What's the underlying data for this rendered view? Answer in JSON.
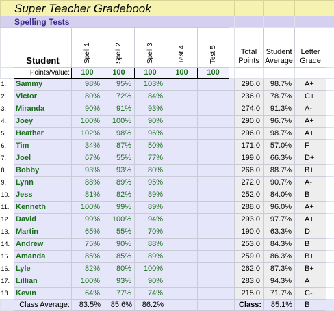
{
  "title": "Super Teacher Gradebook",
  "subtitle": "Spelling Tests",
  "student_header": "Student",
  "test_headers": [
    "Spell 1",
    "Spell 2",
    "Spell 3",
    "Test 4",
    "Test 5"
  ],
  "points_label": "Points/Value:",
  "points_values": [
    "100",
    "100",
    "100",
    "100",
    "100"
  ],
  "total_points_header": [
    "Total",
    "Points"
  ],
  "student_average_header": [
    "Student",
    "Average"
  ],
  "letter_grade_header": [
    "Letter",
    "Grade"
  ],
  "students": [
    {
      "num": "1.",
      "name": "Sammy",
      "s1": "98%",
      "s2": "95%",
      "s3": "103%",
      "total": "296.0",
      "avg": "98.7%",
      "grade": "A+"
    },
    {
      "num": "2.",
      "name": "Victor",
      "s1": "80%",
      "s2": "72%",
      "s3": "84%",
      "total": "236.0",
      "avg": "78.7%",
      "grade": "C+"
    },
    {
      "num": "3.",
      "name": "Miranda",
      "s1": "90%",
      "s2": "91%",
      "s3": "93%",
      "total": "274.0",
      "avg": "91.3%",
      "grade": "A-"
    },
    {
      "num": "4.",
      "name": "Joey",
      "s1": "100%",
      "s2": "100%",
      "s3": "90%",
      "total": "290.0",
      "avg": "96.7%",
      "grade": "A+"
    },
    {
      "num": "5.",
      "name": "Heather",
      "s1": "102%",
      "s2": "98%",
      "s3": "96%",
      "total": "296.0",
      "avg": "98.7%",
      "grade": "A+"
    },
    {
      "num": "6.",
      "name": "Tim",
      "s1": "34%",
      "s2": "87%",
      "s3": "50%",
      "total": "171.0",
      "avg": "57.0%",
      "grade": "F"
    },
    {
      "num": "7.",
      "name": "Joel",
      "s1": "67%",
      "s2": "55%",
      "s3": "77%",
      "total": "199.0",
      "avg": "66.3%",
      "grade": "D+"
    },
    {
      "num": "8.",
      "name": "Bobby",
      "s1": "93%",
      "s2": "93%",
      "s3": "80%",
      "total": "266.0",
      "avg": "88.7%",
      "grade": "B+"
    },
    {
      "num": "9.",
      "name": "Lynn",
      "s1": "88%",
      "s2": "89%",
      "s3": "95%",
      "total": "272.0",
      "avg": "90.7%",
      "grade": "A-"
    },
    {
      "num": "10.",
      "name": "Jess",
      "s1": "81%",
      "s2": "82%",
      "s3": "89%",
      "total": "252.0",
      "avg": "84.0%",
      "grade": "B"
    },
    {
      "num": "11.",
      "name": "Kenneth",
      "s1": "100%",
      "s2": "99%",
      "s3": "89%",
      "total": "288.0",
      "avg": "96.0%",
      "grade": "A+"
    },
    {
      "num": "12.",
      "name": "David",
      "s1": "99%",
      "s2": "100%",
      "s3": "94%",
      "total": "293.0",
      "avg": "97.7%",
      "grade": "A+"
    },
    {
      "num": "13.",
      "name": "Martin",
      "s1": "65%",
      "s2": "55%",
      "s3": "70%",
      "total": "190.0",
      "avg": "63.3%",
      "grade": "D"
    },
    {
      "num": "14.",
      "name": "Andrew",
      "s1": "75%",
      "s2": "90%",
      "s3": "88%",
      "total": "253.0",
      "avg": "84.3%",
      "grade": "B"
    },
    {
      "num": "15.",
      "name": "Amanda",
      "s1": "85%",
      "s2": "85%",
      "s3": "89%",
      "total": "259.0",
      "avg": "86.3%",
      "grade": "B+"
    },
    {
      "num": "16.",
      "name": "Lyle",
      "s1": "82%",
      "s2": "80%",
      "s3": "100%",
      "total": "262.0",
      "avg": "87.3%",
      "grade": "B+"
    },
    {
      "num": "17.",
      "name": "Lillian",
      "s1": "100%",
      "s2": "93%",
      "s3": "90%",
      "total": "283.0",
      "avg": "94.3%",
      "grade": "A"
    },
    {
      "num": "18.",
      "name": "Kevin",
      "s1": "64%",
      "s2": "77%",
      "s3": "74%",
      "total": "215.0",
      "avg": "71.7%",
      "grade": "C-"
    }
  ],
  "class_average_label": "Class Average:",
  "class_average_values": [
    "83.5%",
    "85.6%",
    "86.2%"
  ],
  "class_label": "Class:",
  "class_avg": "85.1%",
  "class_grade": "B",
  "colors": {
    "title_bg": "#f6f2b0",
    "subtitle_bg": "#d6d0f0",
    "subtitle_text": "#3b2a8f",
    "score_text": "#1a6e1a",
    "row_bg": "#e6e6fa"
  }
}
